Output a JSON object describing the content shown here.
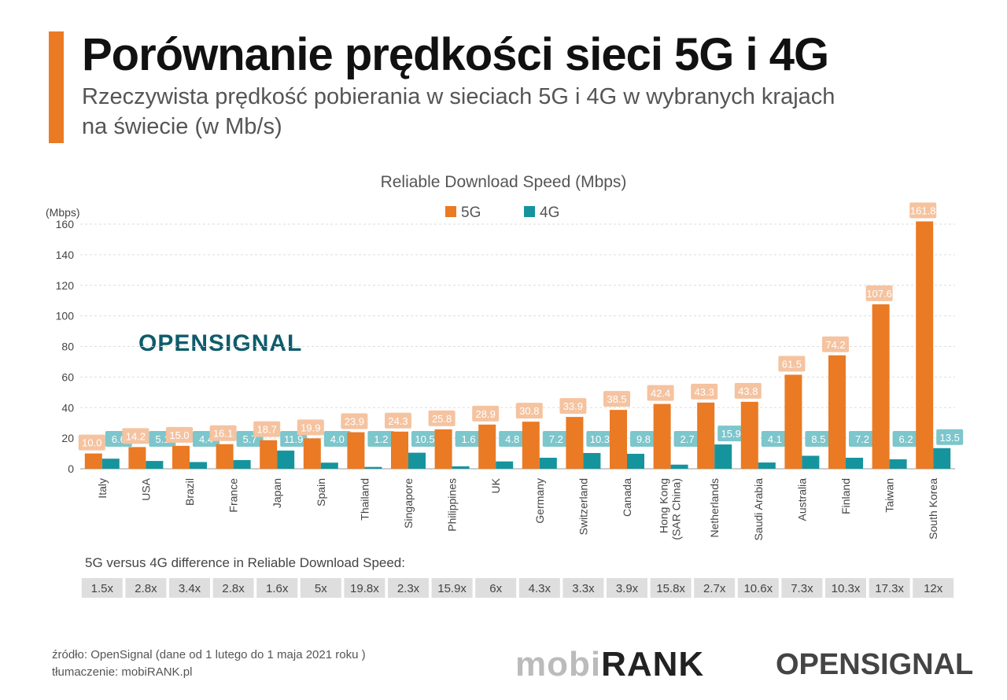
{
  "header": {
    "title": "Porównanie prędkości sieci 5G i 4G",
    "subtitle": "Rzeczywista prędkość pobierania w sieciach 5G i 4G w wybranych krajach na świecie (w Mb/s)"
  },
  "chart_data": {
    "type": "bar",
    "title": "Reliable Download Speed (Mbps)",
    "ylabel": "(Mbps)",
    "xlabel": "",
    "ylim": [
      0,
      160
    ],
    "yticks": [
      0,
      20,
      40,
      60,
      80,
      100,
      120,
      140,
      160
    ],
    "grid": true,
    "legend_position": "top",
    "categories": [
      "Italy",
      "USA",
      "Brazil",
      "France",
      "Japan",
      "Spain",
      "Thailand",
      "Singapore",
      "Philippines",
      "UK",
      "Germany",
      "Switzerland",
      "Canada",
      "Hong Kong (SAR China)",
      "Netherlands",
      "Saudi Arabia",
      "Australia",
      "Finland",
      "Taiwan",
      "South Korea"
    ],
    "series": [
      {
        "name": "5G",
        "color": "#ea7a24",
        "label_color": "#f5c3a0",
        "values": [
          10.0,
          14.2,
          15.0,
          16.1,
          18.7,
          19.9,
          23.9,
          24.3,
          25.8,
          28.9,
          30.8,
          33.9,
          38.5,
          42.4,
          43.3,
          43.8,
          61.5,
          74.2,
          107.6,
          161.8
        ]
      },
      {
        "name": "4G",
        "color": "#16949e",
        "label_color": "#7cc6cc",
        "values": [
          6.6,
          5.1,
          4.4,
          5.7,
          11.9,
          4.0,
          1.2,
          10.5,
          1.6,
          4.8,
          7.2,
          10.3,
          9.8,
          2.7,
          15.9,
          4.1,
          8.5,
          7.2,
          6.2,
          13.5
        ]
      }
    ],
    "difference_title": "5G versus 4G difference in Reliable Download Speed:",
    "difference": [
      "1.5x",
      "2.8x",
      "3.4x",
      "2.8x",
      "1.6x",
      "5x",
      "19.8x",
      "2.3x",
      "15.9x",
      "6x",
      "4.3x",
      "3.3x",
      "3.9x",
      "15.8x",
      "2.7x",
      "10.6x",
      "7.3x",
      "10.3x",
      "17.3x",
      "12x"
    ]
  },
  "footer": {
    "source": "źródło: OpenSignal (dane od 1 lutego do 1 maja 2021 roku )",
    "translation": "tłumaczenie: mobiRANK.pl",
    "logo_mobirank": "mobiRANK",
    "logo_opensignal": "OPENSIGNAL"
  },
  "watermark": {
    "opensignal": "OPENSIGNAL"
  }
}
